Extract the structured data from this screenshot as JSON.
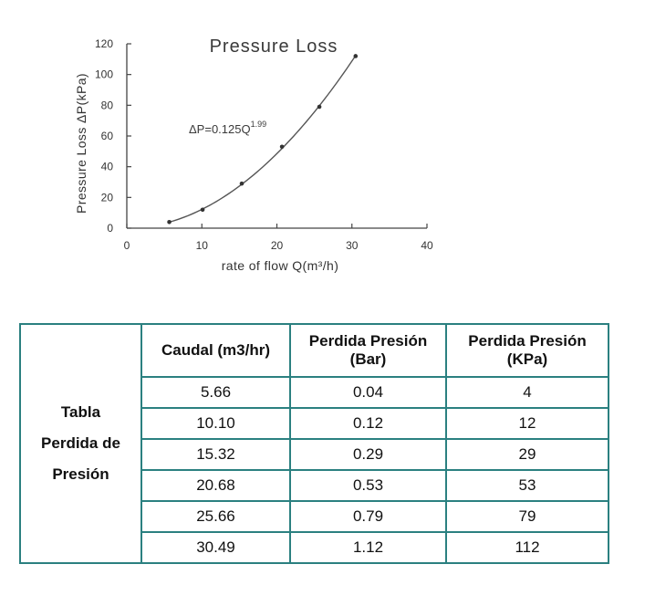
{
  "chart_data": {
    "type": "scatter",
    "title": "Pressure Loss",
    "xlabel": "rate of flow Q(m³/h)",
    "ylabel": "Pressure Loss ΔP(kPa)",
    "xlim": [
      0,
      40
    ],
    "ylim": [
      0,
      120
    ],
    "xticks": [
      0,
      10,
      20,
      30,
      40
    ],
    "yticks": [
      0,
      20,
      40,
      60,
      80,
      100,
      120
    ],
    "grid": false,
    "annotation": {
      "base": "ΔP=0.125Q",
      "exponent": "1.99"
    },
    "fit_curve": {
      "coefficient": 0.125,
      "exponent": 1.99
    },
    "series": [
      {
        "x": [
          5.66,
          10.1,
          15.32,
          20.68,
          25.66,
          30.49
        ],
        "y": [
          4,
          12,
          29,
          53,
          79,
          112
        ]
      }
    ]
  },
  "table": {
    "row_header": [
      "Tabla",
      "Perdida de",
      "Presión"
    ],
    "columns": [
      [
        "Caudal (m3/hr)"
      ],
      [
        "Perdida Presión",
        "(Bar)"
      ],
      [
        "Perdida Presión",
        "(KPa)"
      ]
    ],
    "rows": [
      [
        "5.66",
        "0.04",
        "4"
      ],
      [
        "10.10",
        "0.12",
        "12"
      ],
      [
        "15.32",
        "0.29",
        "29"
      ],
      [
        "20.68",
        "0.53",
        "53"
      ],
      [
        "25.66",
        "0.79",
        "79"
      ],
      [
        "30.49",
        "1.12",
        "112"
      ]
    ],
    "border_color": "#2b8080"
  }
}
